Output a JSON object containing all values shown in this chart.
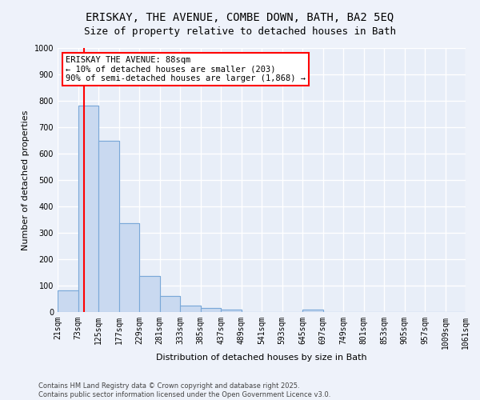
{
  "title1": "ERISKAY, THE AVENUE, COMBE DOWN, BATH, BA2 5EQ",
  "title2": "Size of property relative to detached houses in Bath",
  "xlabel": "Distribution of detached houses by size in Bath",
  "ylabel": "Number of detached properties",
  "bar_color": "#c9d9f0",
  "bar_edge_color": "#7aa8d8",
  "background_color": "#e8eef8",
  "fig_background_color": "#eef2fa",
  "grid_color": "#ffffff",
  "red_line_x": 88,
  "annotation_title": "ERISKAY THE AVENUE: 88sqm",
  "annotation_line1": "← 10% of detached houses are smaller (203)",
  "annotation_line2": "90% of semi-detached houses are larger (1,868) →",
  "bins": [
    21,
    73,
    125,
    177,
    229,
    281,
    333,
    385,
    437,
    489,
    541,
    593,
    645,
    697,
    749,
    801,
    853,
    905,
    957,
    1009,
    1061
  ],
  "counts": [
    83,
    783,
    648,
    335,
    135,
    60,
    23,
    16,
    8,
    0,
    0,
    0,
    8,
    0,
    0,
    0,
    0,
    0,
    0,
    0
  ],
  "tick_labels": [
    "21sqm",
    "73sqm",
    "125sqm",
    "177sqm",
    "229sqm",
    "281sqm",
    "333sqm",
    "385sqm",
    "437sqm",
    "489sqm",
    "541sqm",
    "593sqm",
    "645sqm",
    "697sqm",
    "749sqm",
    "801sqm",
    "853sqm",
    "905sqm",
    "957sqm",
    "1009sqm",
    "1061sqm"
  ],
  "ylim": [
    0,
    1000
  ],
  "yticks": [
    0,
    100,
    200,
    300,
    400,
    500,
    600,
    700,
    800,
    900,
    1000
  ],
  "copyright_text": "Contains HM Land Registry data © Crown copyright and database right 2025.\nContains public sector information licensed under the Open Government Licence v3.0.",
  "title_fontsize": 10,
  "subtitle_fontsize": 9,
  "xlabel_fontsize": 8,
  "ylabel_fontsize": 8,
  "tick_fontsize": 7,
  "annot_fontsize": 7.5,
  "copyright_fontsize": 6
}
